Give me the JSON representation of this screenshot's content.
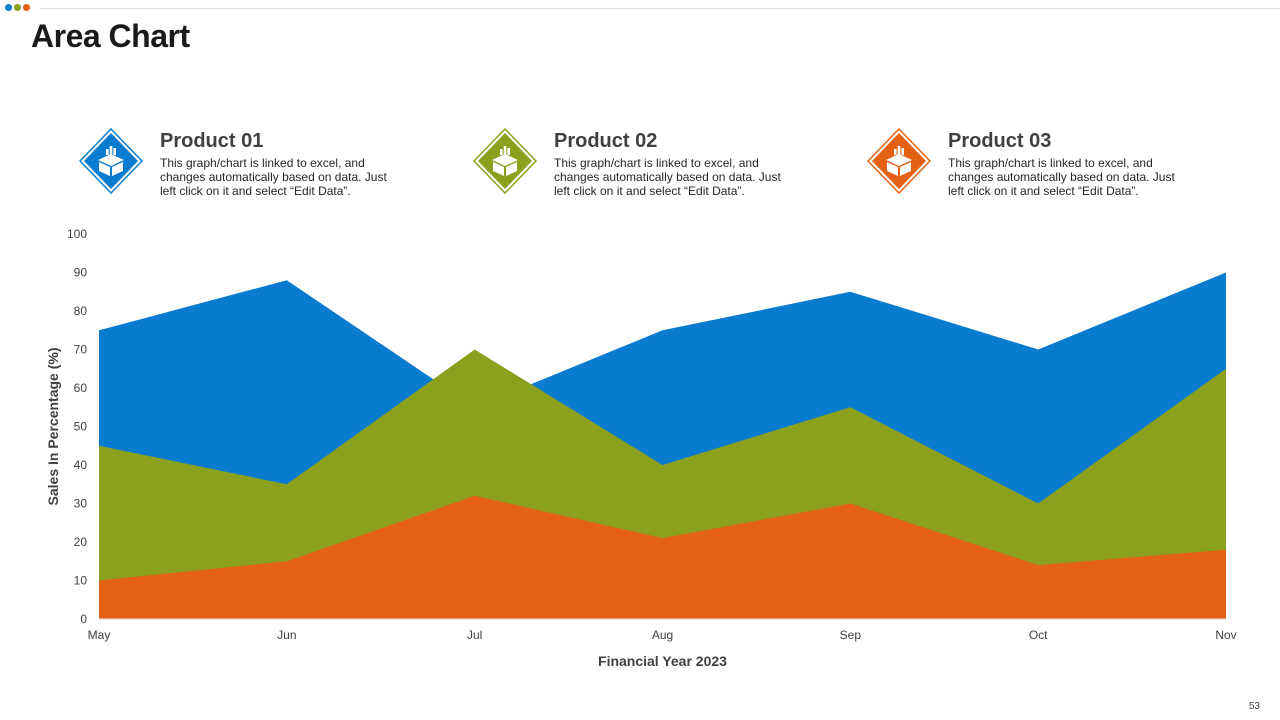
{
  "slide": {
    "title": "Area Chart",
    "page_number": "53",
    "decor_dot_colors": [
      "#0a7cd0",
      "#8ba11e",
      "#e46013"
    ]
  },
  "legend": [
    {
      "name": "Product 01",
      "description": "This graph/chart is linked to excel, and changes automatically based on data. Just left click on it and select “Edit Data”.",
      "color": "#0a7cd0",
      "icon": "box-chart-icon"
    },
    {
      "name": "Product 02",
      "description": "This graph/chart is linked to excel, and changes automatically based on data. Just left click on it and select “Edit Data”.",
      "color": "#8ba11e",
      "icon": "box-chart-icon"
    },
    {
      "name": "Product 03",
      "description": "This graph/chart is linked to excel, and changes automatically based on data. Just left click on it and select “Edit Data”.",
      "color": "#e46013",
      "icon": "box-chart-icon"
    }
  ],
  "chart_data": {
    "type": "area",
    "title": "",
    "xlabel": "Financial Year 2023",
    "ylabel": "Sales In Percentage (%)",
    "categories": [
      "May",
      "Jun",
      "Jul",
      "Aug",
      "Sep",
      "Oct",
      "Nov"
    ],
    "ylim": [
      0,
      100
    ],
    "yticks": [
      0,
      10,
      20,
      30,
      40,
      50,
      60,
      70,
      80,
      90,
      100
    ],
    "grid": false,
    "stacked": false,
    "series": [
      {
        "name": "Product 01",
        "color": "#0a7cd0",
        "values": [
          75,
          88,
          55,
          75,
          85,
          70,
          90
        ]
      },
      {
        "name": "Product 02",
        "color": "#8ba11e",
        "values": [
          45,
          35,
          70,
          40,
          55,
          30,
          65
        ]
      },
      {
        "name": "Product 03",
        "color": "#e46013",
        "values": [
          10,
          15,
          32,
          21,
          30,
          14,
          18
        ]
      }
    ]
  }
}
